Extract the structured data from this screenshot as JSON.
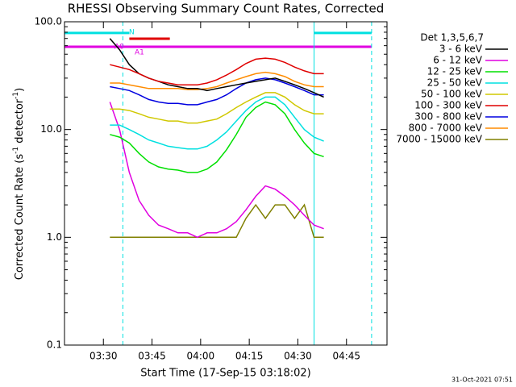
{
  "chart_data": {
    "type": "line",
    "title": "RHESSI Observing Summary Count Rates, Corrected",
    "x_label": "Start Time (17-Sep-15 03:18:02)",
    "y_label_parts": [
      "Corrected Count Rate (s",
      "-1",
      " detector",
      "-1",
      ")"
    ],
    "legend_title": "Det 1,3,5,6,7",
    "footer": "31-Oct-2021 07:51",
    "log_y": true,
    "xlim": [
      198,
      297.5
    ],
    "ylim": [
      0.1,
      100
    ],
    "xticks": [
      {
        "value": 210,
        "label": "03:30"
      },
      {
        "value": 225,
        "label": "03:45"
      },
      {
        "value": 240,
        "label": "04:00"
      },
      {
        "value": 255,
        "label": "04:15"
      },
      {
        "value": 270,
        "label": "04:30"
      },
      {
        "value": 285,
        "label": "04:45"
      }
    ],
    "yticks": [
      0.1,
      {
        "value": 1,
        "label": "1.0"
      },
      {
        "value": 10,
        "label": "10.0"
      },
      {
        "value": 100,
        "label": "100.0"
      }
    ],
    "x": [
      212,
      215,
      218,
      221,
      224,
      227,
      230,
      233,
      236,
      239,
      242,
      245,
      248,
      251,
      254,
      257,
      260,
      263,
      266,
      269,
      272,
      275,
      278
    ],
    "series": [
      {
        "name": "3 - 6 keV",
        "color": "#000000",
        "values": [
          70,
          55,
          40,
          33,
          30,
          28,
          26,
          25,
          24,
          24,
          23,
          24,
          25,
          26,
          27,
          28,
          29,
          30,
          28,
          26,
          24,
          22,
          20
        ]
      },
      {
        "name": "6 - 12 keV",
        "color": "#e000e0",
        "values": [
          18,
          10,
          4,
          2.2,
          1.6,
          1.3,
          1.2,
          1.1,
          1.1,
          1.0,
          1.1,
          1.1,
          1.2,
          1.4,
          1.8,
          2.4,
          3.0,
          2.8,
          2.4,
          2.0,
          1.6,
          1.3,
          1.2
        ]
      },
      {
        "name": "12 - 25 keV",
        "color": "#00e000",
        "values": [
          9,
          8.5,
          7.5,
          6,
          5,
          4.5,
          4.3,
          4.2,
          4.0,
          4.0,
          4.3,
          5,
          6.5,
          9,
          13,
          16,
          18,
          17,
          14,
          10,
          7.5,
          6,
          5.6
        ]
      },
      {
        "name": "25 - 50 keV",
        "color": "#00e0e0",
        "values": [
          11,
          11,
          10,
          9,
          8,
          7.5,
          7,
          6.8,
          6.6,
          6.6,
          7,
          8,
          9.5,
          12,
          15,
          18,
          20,
          20,
          17,
          13,
          10,
          8.5,
          7.8
        ]
      },
      {
        "name": "50 - 100 keV",
        "color": "#d0c800",
        "values": [
          15.5,
          15.5,
          15,
          14,
          13,
          12.5,
          12,
          12,
          11.5,
          11.5,
          12,
          12.5,
          14,
          16,
          18,
          20,
          22,
          22,
          20,
          17,
          15,
          14,
          14
        ]
      },
      {
        "name": "100 - 300 keV",
        "color": "#e00000",
        "values": [
          40,
          38,
          36,
          33,
          30,
          28,
          27,
          26,
          26,
          26,
          27,
          29,
          32,
          36,
          41,
          45,
          46,
          45,
          42,
          38,
          35,
          33,
          33
        ]
      },
      {
        "name": "300 - 800 keV",
        "color": "#0000e0",
        "values": [
          25,
          24,
          23,
          21,
          19,
          18,
          17.5,
          17.5,
          17,
          17,
          18,
          19,
          21,
          24,
          27,
          29,
          30,
          29,
          27,
          25,
          23,
          21,
          21
        ]
      },
      {
        "name": "800 - 7000 keV",
        "color": "#ff8c00",
        "values": [
          27,
          27,
          26,
          25,
          24,
          24,
          24,
          24,
          23.5,
          23.5,
          24,
          25,
          27,
          29,
          31,
          33,
          34,
          33,
          31,
          28,
          26,
          25,
          25
        ]
      },
      {
        "name": "7000 - 15000 keV",
        "color": "#808000",
        "values": [
          1,
          1,
          1,
          1,
          1,
          1,
          1,
          1,
          1,
          1,
          1,
          1,
          1,
          1,
          1.5,
          2,
          1.5,
          2,
          2,
          1.5,
          2,
          1,
          1
        ]
      }
    ],
    "flag_bars": [
      {
        "color": "#e000e0",
        "x": [
          198,
          292.75
        ],
        "y": 58.6
      },
      {
        "color": "#00e0e0",
        "x": [
          198,
          218
        ],
        "y": 78.7
      },
      {
        "color": "#00e0e0",
        "x": [
          275,
          292.75
        ],
        "y": 78.7
      },
      {
        "color": "#e00000",
        "x": [
          218,
          230.5
        ],
        "y": 69.7
      }
    ],
    "vlines": [
      {
        "x": 198,
        "color": "#00e0e0",
        "dashed": false
      },
      {
        "x": 216,
        "color": "#00e0e0",
        "dashed": true
      },
      {
        "x": 275,
        "color": "#00e0e0",
        "dashed": false
      },
      {
        "x": 292.75,
        "color": "#00e0e0",
        "dashed": true
      }
    ],
    "annotations": [
      {
        "text": "A0",
        "color": "#e000e0"
      },
      {
        "text": "A1",
        "color": "#e000e0"
      },
      {
        "text": "N",
        "color": "#00e0e0"
      }
    ]
  }
}
